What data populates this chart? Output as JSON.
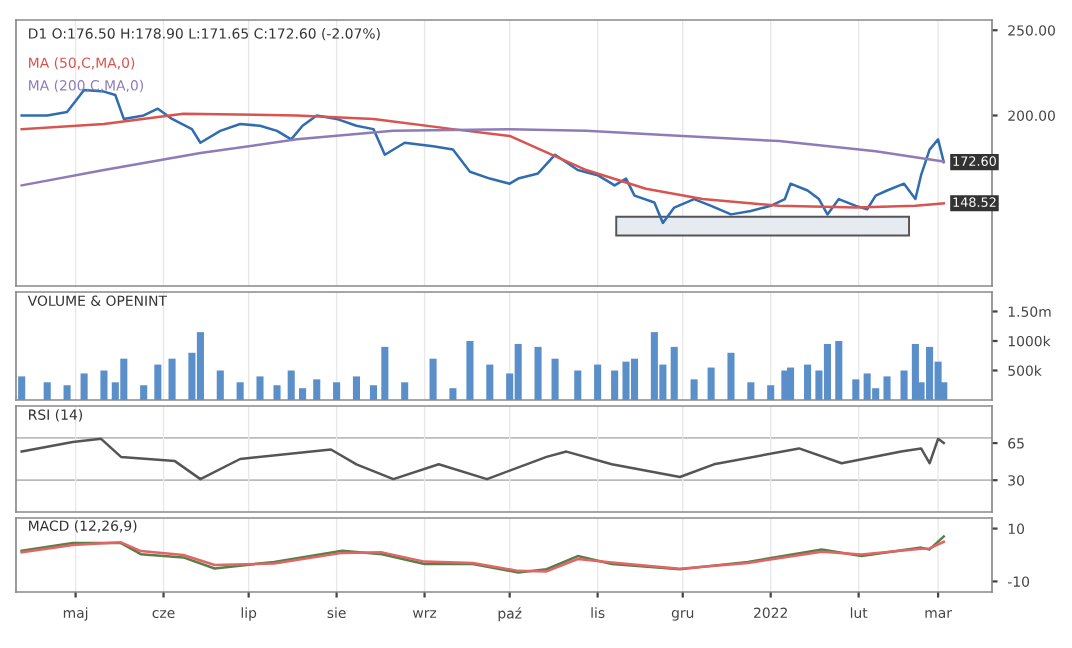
{
  "chart_data": [
    {
      "type": "line",
      "title": "D1 O:176.50 H:178.90 L:171.65 C:172.60 (-2.07%)",
      "legend": "top left",
      "grid": "x",
      "tick_labels": "y",
      "ylim": [
        100,
        256
      ],
      "yticks": [
        {
          "value": 200,
          "label": "200.00"
        },
        {
          "value": 250,
          "label": "250.00"
        }
      ],
      "xlim": [
        "2021-04-10",
        "2022-03-20"
      ],
      "x": [
        "2021-04-12",
        "2021-04-21",
        "2021-04-28",
        "2021-05-04",
        "2021-05-11",
        "2021-05-15",
        "2021-05-18",
        "2021-05-25",
        "2021-05-30",
        "2021-06-04",
        "2021-06-11",
        "2021-06-14",
        "2021-06-21",
        "2021-06-28",
        "2021-07-05",
        "2021-07-11",
        "2021-07-16",
        "2021-07-20",
        "2021-07-25",
        "2021-08-01",
        "2021-08-08",
        "2021-08-14",
        "2021-08-18",
        "2021-08-25",
        "2021-09-04",
        "2021-09-11",
        "2021-09-17",
        "2021-09-24",
        "2021-10-01",
        "2021-10-04",
        "2021-10-11",
        "2021-10-17",
        "2021-10-25",
        "2021-11-01",
        "2021-11-07",
        "2021-11-11",
        "2021-11-14",
        "2021-11-21",
        "2021-11-24",
        "2021-11-28",
        "2021-12-05",
        "2021-12-11",
        "2021-12-18",
        "2021-12-25",
        "2022-01-01",
        "2022-01-06",
        "2022-01-08",
        "2022-01-14",
        "2022-01-18",
        "2022-01-21",
        "2022-01-25",
        "2022-01-31",
        "2022-02-04",
        "2022-02-07",
        "2022-02-11",
        "2022-02-17",
        "2022-02-21",
        "2022-02-23",
        "2022-02-26",
        "2022-03-01",
        "2022-03-03"
      ],
      "series": [
        {
          "color": "#2f6db0",
          "values": [
            200,
            200,
            202,
            215,
            214,
            212,
            198,
            200,
            204,
            198,
            192,
            184,
            191,
            195,
            194,
            191,
            186,
            194,
            200,
            198,
            194,
            192,
            177,
            184,
            182,
            180,
            167,
            163,
            160,
            163,
            166,
            177,
            168,
            165,
            159,
            163,
            153,
            149,
            137,
            146,
            151,
            147,
            142,
            144,
            147,
            151,
            160,
            156,
            151,
            142,
            151,
            147,
            145,
            153,
            156,
            160,
            151,
            165,
            180,
            186,
            172.6
          ]
        },
        {
          "name": "MA (50,C,MA,0)",
          "color": "#d9534f",
          "x": [
            "2021-04-12",
            "2021-05-11",
            "2021-06-08",
            "2021-07-18",
            "2021-08-14",
            "2021-09-11",
            "2021-10-01",
            "2021-10-28",
            "2021-11-18",
            "2021-12-08",
            "2022-01-04",
            "2022-01-31",
            "2022-02-21",
            "2022-03-03"
          ],
          "values": [
            192,
            195,
            201,
            200,
            198,
            192,
            188,
            168,
            157,
            151,
            147,
            146,
            147,
            148.52
          ]
        },
        {
          "name": "MA (200,C,MA,0)",
          "color": "#8e7cb8",
          "x": [
            "2021-04-12",
            "2021-05-11",
            "2021-06-14",
            "2021-07-18",
            "2021-08-21",
            "2021-10-01",
            "2021-10-28",
            "2021-12-01",
            "2022-01-04",
            "2022-02-07",
            "2022-03-03"
          ],
          "values": [
            159,
            168,
            178,
            186,
            191,
            192,
            191,
            188,
            185,
            179,
            173
          ]
        }
      ],
      "annotations": [
        {
          "text": "172.60",
          "x": "2022-03-03",
          "y": 172.6
        },
        {
          "text": "148.52",
          "x": "2022-03-03",
          "y": 148.52
        }
      ]
    },
    {
      "type": "bar",
      "title": "VOLUME & OPENINT",
      "grid": "x",
      "tick_labels": "y",
      "ylim": [
        0,
        1830000
      ],
      "yticks": [
        {
          "value": 500000,
          "label": "500k"
        },
        {
          "value": 1000000,
          "label": "1000k"
        },
        {
          "value": 1500000,
          "label": "1.50m"
        }
      ],
      "xlim": [
        "2021-04-10",
        "2022-03-20"
      ],
      "x": [
        "2021-04-12",
        "2021-04-21",
        "2021-04-28",
        "2021-05-04",
        "2021-05-11",
        "2021-05-15",
        "2021-05-18",
        "2021-05-25",
        "2021-05-30",
        "2021-06-04",
        "2021-06-11",
        "2021-06-14",
        "2021-06-21",
        "2021-06-28",
        "2021-07-05",
        "2021-07-11",
        "2021-07-16",
        "2021-07-20",
        "2021-07-25",
        "2021-08-01",
        "2021-08-08",
        "2021-08-14",
        "2021-08-18",
        "2021-08-25",
        "2021-09-04",
        "2021-09-11",
        "2021-09-17",
        "2021-09-24",
        "2021-10-01",
        "2021-10-04",
        "2021-10-11",
        "2021-10-17",
        "2021-10-25",
        "2021-11-01",
        "2021-11-07",
        "2021-11-11",
        "2021-11-14",
        "2021-11-21",
        "2021-11-24",
        "2021-11-28",
        "2021-12-05",
        "2021-12-11",
        "2021-12-18",
        "2021-12-25",
        "2022-01-01",
        "2022-01-06",
        "2022-01-08",
        "2022-01-14",
        "2022-01-18",
        "2022-01-21",
        "2022-01-25",
        "2022-01-31",
        "2022-02-04",
        "2022-02-07",
        "2022-02-11",
        "2022-02-17",
        "2022-02-21",
        "2022-02-23",
        "2022-02-26",
        "2022-03-01",
        "2022-03-03"
      ],
      "series": [
        {
          "color": "#5b8fc9",
          "values": [
            400000,
            300000,
            250000,
            450000,
            500000,
            300000,
            700000,
            250000,
            600000,
            700000,
            800000,
            1150000,
            500000,
            300000,
            400000,
            250000,
            500000,
            200000,
            350000,
            300000,
            400000,
            250000,
            900000,
            300000,
            700000,
            200000,
            1000000,
            600000,
            450000,
            950000,
            900000,
            700000,
            500000,
            600000,
            500000,
            650000,
            700000,
            1150000,
            600000,
            900000,
            350000,
            550000,
            800000,
            300000,
            250000,
            500000,
            550000,
            600000,
            500000,
            950000,
            1000000,
            350000,
            450000,
            200000,
            400000,
            500000,
            950000,
            300000,
            900000,
            650000,
            300000
          ]
        }
      ]
    },
    {
      "type": "line",
      "title": "RSI (14)",
      "grid": "x",
      "tick_labels": "y",
      "ylim": [
        0,
        100
      ],
      "yticks": [
        30,
        65
      ],
      "xlim": [
        "2021-04-10",
        "2022-03-20"
      ],
      "ref_lines": [
        {
          "axis": "y",
          "value": 70,
          "color": "#bbbbbb"
        },
        {
          "axis": "y",
          "value": 30,
          "color": "#bbbbbb"
        }
      ],
      "x": [
        "2021-04-12",
        "2021-04-30",
        "2021-05-10",
        "2021-05-17",
        "2021-06-05",
        "2021-06-14",
        "2021-06-28",
        "2021-07-30",
        "2021-08-08",
        "2021-08-21",
        "2021-09-06",
        "2021-09-23",
        "2021-10-14",
        "2021-10-21",
        "2021-11-06",
        "2021-11-30",
        "2021-12-12",
        "2022-01-11",
        "2022-01-26",
        "2022-02-16",
        "2022-02-23",
        "2022-02-26",
        "2022-03-01",
        "2022-03-03"
      ],
      "series": [
        {
          "color": "#555555",
          "values": [
            57,
            66,
            69,
            52,
            48,
            31,
            50,
            59,
            45,
            31,
            45,
            31,
            52,
            57,
            45,
            33,
            45,
            60,
            46,
            57,
            60,
            46,
            69,
            65
          ]
        }
      ]
    },
    {
      "type": "line",
      "title": "MACD (12,26,9)",
      "grid": "x",
      "ylim": [
        -14,
        14
      ],
      "yticks": [
        -10,
        10
      ],
      "xlim": [
        "2021-04-10",
        "2022-03-20"
      ],
      "xticks": [
        {
          "value": "2021-05-01",
          "label": "maj"
        },
        {
          "value": "2021-06-01",
          "label": "cze"
        },
        {
          "value": "2021-07-01",
          "label": "lip"
        },
        {
          "value": "2021-08-01",
          "label": "sie"
        },
        {
          "value": "2021-09-01",
          "label": "wrz"
        },
        {
          "value": "2021-10-01",
          "label": "paź"
        },
        {
          "value": "2021-11-01",
          "label": "lis"
        },
        {
          "value": "2021-12-01",
          "label": "gru"
        },
        {
          "value": "2022-01-01",
          "label": "2022"
        },
        {
          "value": "2022-02-01",
          "label": "lut"
        },
        {
          "value": "2022-03-01",
          "label": "mar"
        }
      ],
      "x": [
        "2021-04-12",
        "2021-04-30",
        "2021-05-17",
        "2021-05-24",
        "2021-06-08",
        "2021-06-19",
        "2021-07-10",
        "2021-08-03",
        "2021-08-17",
        "2021-09-01",
        "2021-09-18",
        "2021-10-04",
        "2021-10-14",
        "2021-10-25",
        "2021-11-06",
        "2021-11-30",
        "2021-12-24",
        "2022-01-19",
        "2022-02-02",
        "2022-02-23",
        "2022-02-26",
        "2022-03-03"
      ],
      "series": [
        {
          "color": "#5a7d4a",
          "values": [
            1.6,
            4.5,
            4.5,
            0.3,
            -0.9,
            -5.1,
            -2.6,
            1.6,
            0.3,
            -3.4,
            -3.4,
            -6.6,
            -5.4,
            -0.4,
            -3.4,
            -5.4,
            -2.6,
            2.1,
            -0.4,
            2.8,
            2.1,
            7.0
          ]
        },
        {
          "color": "#e06666",
          "values": [
            1.0,
            3.8,
            4.8,
            1.5,
            0.0,
            -3.8,
            -3.2,
            0.8,
            1.0,
            -2.5,
            -3.0,
            -6.0,
            -6.2,
            -1.5,
            -2.8,
            -5.2,
            -3.0,
            1.2,
            0.2,
            2.4,
            2.5,
            5.0
          ]
        }
      ]
    }
  ]
}
